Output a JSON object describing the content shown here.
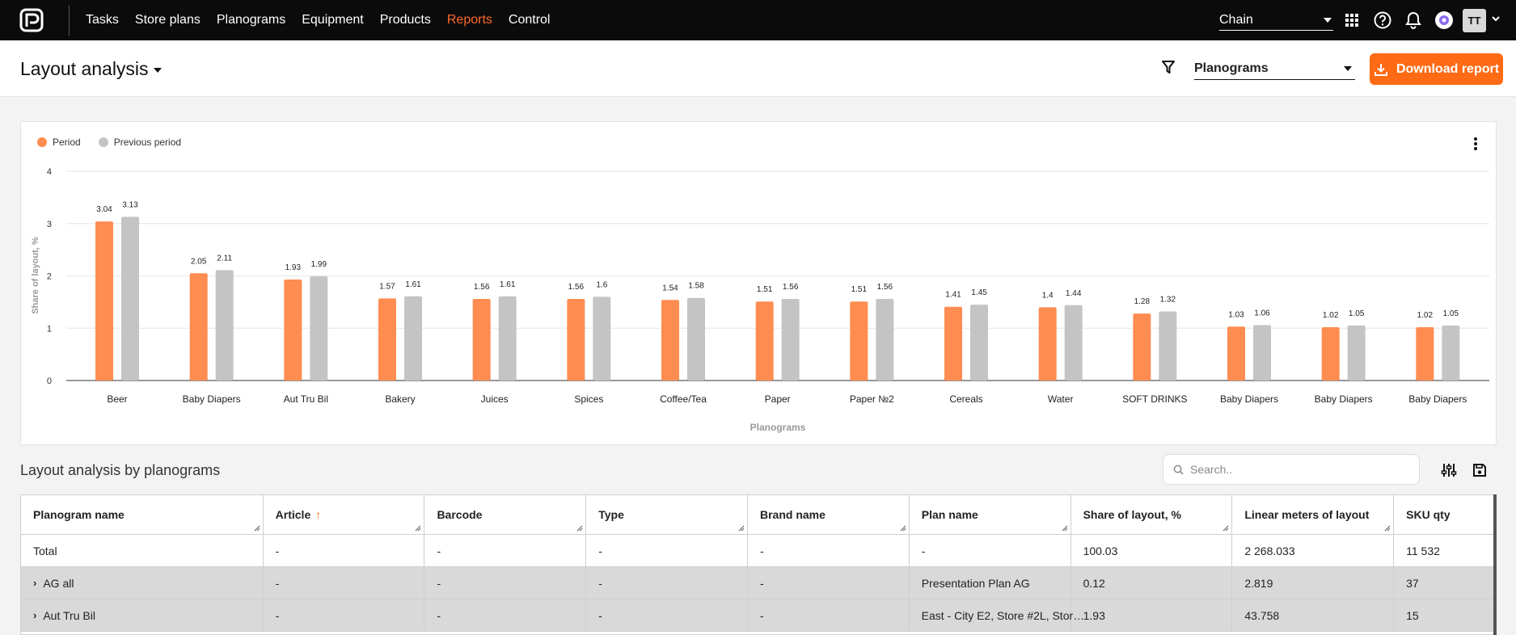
{
  "nav": {
    "items": [
      {
        "label": "Tasks",
        "active": false
      },
      {
        "label": "Store plans",
        "active": false
      },
      {
        "label": "Planograms",
        "active": false
      },
      {
        "label": "Equipment",
        "active": false
      },
      {
        "label": "Products",
        "active": false
      },
      {
        "label": "Reports",
        "active": true
      },
      {
        "label": "Control",
        "active": false
      }
    ],
    "chain_select": "Chain",
    "user_initials": "TT"
  },
  "header": {
    "title": "Layout analysis",
    "report_select": "Planograms",
    "download_label": "Download report"
  },
  "colors": {
    "accent": "#ff6a14",
    "period": "#ff8c50",
    "previous": "#c4c4c4"
  },
  "chart_data": {
    "type": "bar",
    "ylabel": "Share of layout, %",
    "xlabel": "Planograms",
    "ylim": [
      0,
      4
    ],
    "yticks": [
      0,
      1,
      2,
      3,
      4
    ],
    "grid": true,
    "legend_position": "top-left",
    "categories": [
      "Beer",
      "Baby Diapers",
      "Aut Tru Bil",
      "Bakery",
      "Juices",
      "Spices",
      "Coffee/Tea",
      "Paper",
      "Paper №2",
      "Cereals",
      "Water",
      "SOFT DRINKS",
      "Baby Diapers",
      "Baby Diapers",
      "Baby Diapers"
    ],
    "series": [
      {
        "name": "Period",
        "color": "#ff8c50",
        "values": [
          3.04,
          2.05,
          1.93,
          1.57,
          1.56,
          1.56,
          1.54,
          1.51,
          1.51,
          1.41,
          1.4,
          1.28,
          1.03,
          1.02,
          1.02
        ]
      },
      {
        "name": "Previous period",
        "color": "#c4c4c4",
        "values": [
          3.13,
          2.11,
          1.99,
          1.61,
          1.61,
          1.6,
          1.58,
          1.56,
          1.56,
          1.45,
          1.44,
          1.32,
          1.06,
          1.05,
          1.05
        ]
      }
    ]
  },
  "table": {
    "title": "Layout analysis by planograms",
    "search_placeholder": "Search..",
    "columns": [
      "Planogram name",
      "Article",
      "Barcode",
      "Type",
      "Brand name",
      "Plan name",
      "Share of layout, %",
      "Linear meters of layout",
      "SKU qty"
    ],
    "sorted_column": "Article",
    "rows": [
      {
        "expandable": false,
        "cells": [
          "Total",
          "-",
          "-",
          "-",
          "-",
          "-",
          "100.03",
          "2 268.033",
          "11 532"
        ]
      },
      {
        "expandable": true,
        "cells": [
          "AG all",
          "-",
          "-",
          "-",
          "-",
          "Presentation Plan AG",
          "0.12",
          "2.819",
          "37"
        ]
      },
      {
        "expandable": true,
        "cells": [
          "Aut Tru Bil",
          "-",
          "-",
          "-",
          "-",
          "East - City E2, Store #2L, Stor…",
          "1.93",
          "43.758",
          "15"
        ]
      }
    ]
  }
}
